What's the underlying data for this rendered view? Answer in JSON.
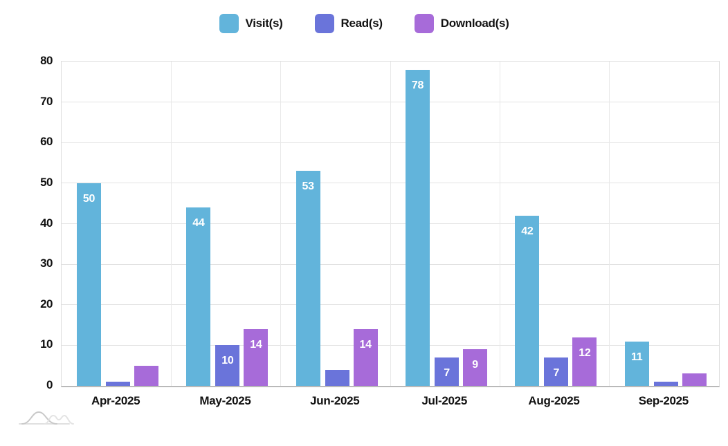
{
  "chart_data": {
    "type": "bar",
    "title": "",
    "xlabel": "",
    "ylabel": "",
    "categories": [
      "Apr-2025",
      "May-2025",
      "Jun-2025",
      "Jul-2025",
      "Aug-2025",
      "Sep-2025"
    ],
    "series": [
      {
        "name": "Visit(s)",
        "color": "#62b4db",
        "values": [
          50,
          44,
          53,
          78,
          42,
          11
        ]
      },
      {
        "name": "Read(s)",
        "color": "#6a74da",
        "values": [
          1,
          10,
          4,
          7,
          7,
          1
        ]
      },
      {
        "name": "Download(s)",
        "color": "#a76bd9",
        "values": [
          5,
          14,
          14,
          9,
          12,
          3
        ]
      }
    ],
    "ylim": [
      0,
      80
    ],
    "yticks": [
      0,
      10,
      20,
      30,
      40,
      50,
      60,
      70,
      80
    ],
    "grid": true,
    "legend_position": "top",
    "bar_label_color": "#ffffff",
    "bar_label_min_value": 7
  },
  "colors": {
    "grid_h": "#e2e2e2",
    "grid_v": "#e8e8e8",
    "plot_border": "#dddddd",
    "axis_line": "#b9b9b9",
    "text": "#111111",
    "watermark": "#cfcfcf"
  },
  "icons": {
    "watermark": "bell-curves-logo"
  }
}
